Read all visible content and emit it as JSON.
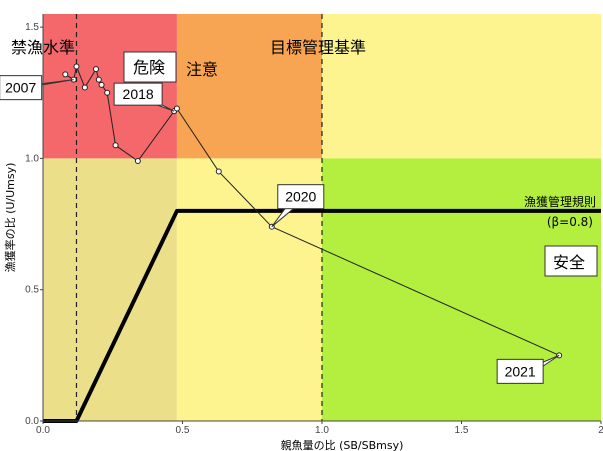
{
  "chart_data": {
    "type": "line",
    "xlabel": "親魚量の比 (SB/SBmsy)",
    "ylabel": "漁獲率の比 (U/Umsy)",
    "xlim": [
      0,
      2
    ],
    "ylim": [
      0,
      1.55
    ],
    "x_ticks": [
      "0.0",
      "0.5",
      "1.0",
      "1.5",
      "2"
    ],
    "y_ticks": [
      "0.0",
      "0.5",
      "1.0",
      "1.5"
    ],
    "zones": {
      "colors": {
        "red": "#f4676b",
        "orange": "#f7a552",
        "yellow": "#fdf48f",
        "olive": "#ebe089",
        "green": "#b4ef40"
      }
    },
    "reference_lines": {
      "ban_level_x": 0.12,
      "target_x": 1.0
    },
    "labels": {
      "ban_level": "禁漁水準",
      "danger": "危険",
      "caution": "注意",
      "target": "目標管理基準",
      "safe": "安全",
      "hcr_name": "漁獲管理規則",
      "hcr_beta": "(β=0.8)"
    },
    "hcr_line": {
      "x": [
        0,
        0.12,
        0.48,
        2.0
      ],
      "y": [
        0,
        0,
        0.8,
        0.8
      ]
    },
    "series": [
      {
        "x": [
          0.08,
          0.11,
          0.12,
          0.15,
          0.19,
          0.2,
          0.21,
          0.23,
          0.26,
          0.34,
          0.47,
          0.48,
          0.63,
          0.82,
          1.85
        ],
        "y": [
          1.32,
          1.3,
          1.35,
          1.27,
          1.34,
          1.3,
          1.28,
          1.25,
          1.05,
          0.99,
          1.18,
          1.19,
          0.95,
          0.74,
          0.25
        ]
      }
    ],
    "annotations": [
      {
        "text": "2007",
        "x": 0.11,
        "y": 1.3
      },
      {
        "text": "2018",
        "x": 0.47,
        "y": 1.18
      },
      {
        "text": "2020",
        "x": 0.82,
        "y": 0.74
      },
      {
        "text": "2021",
        "x": 1.85,
        "y": 0.25
      }
    ]
  }
}
